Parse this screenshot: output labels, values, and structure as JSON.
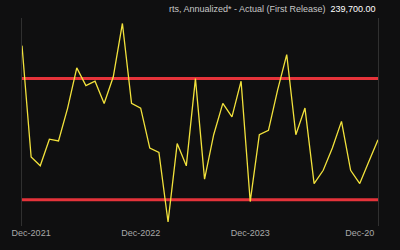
{
  "chart_data": {
    "type": "line",
    "title": "rts, Annualized* - Actual (First Release)",
    "headline": {
      "value": 239700,
      "label": "239,700.00"
    },
    "categories": [
      null,
      "Dec-2021",
      null,
      null,
      null,
      null,
      null,
      null,
      null,
      null,
      null,
      null,
      null,
      "Dec-2022",
      null,
      null,
      null,
      null,
      null,
      null,
      null,
      null,
      null,
      null,
      null,
      "Dec-2023",
      null,
      null,
      null,
      null,
      null,
      null,
      null,
      null,
      null,
      null,
      null,
      "Dec-20",
      null,
      null
    ],
    "values": [
      286300,
      231200,
      226800,
      240000,
      239100,
      255400,
      275300,
      266500,
      268700,
      257700,
      270900,
      297300,
      257700,
      255400,
      235600,
      233400,
      199000,
      237800,
      226800,
      270000,
      220200,
      242200,
      257700,
      251000,
      268700,
      209100,
      242200,
      244400,
      264300,
      281900,
      242200,
      255400,
      218000,
      224600,
      235600,
      248800,
      224600,
      218000,
      229000,
      239700
    ],
    "color": "#f2e23c",
    "ylim": [
      197000,
      300000
    ],
    "yticks": [],
    "tick_labels": "x",
    "grid": false,
    "hlines": [
      {
        "value": 270000,
        "color": "#e5333a"
      },
      {
        "value": 210000,
        "color": "#e5333a"
      }
    ]
  }
}
